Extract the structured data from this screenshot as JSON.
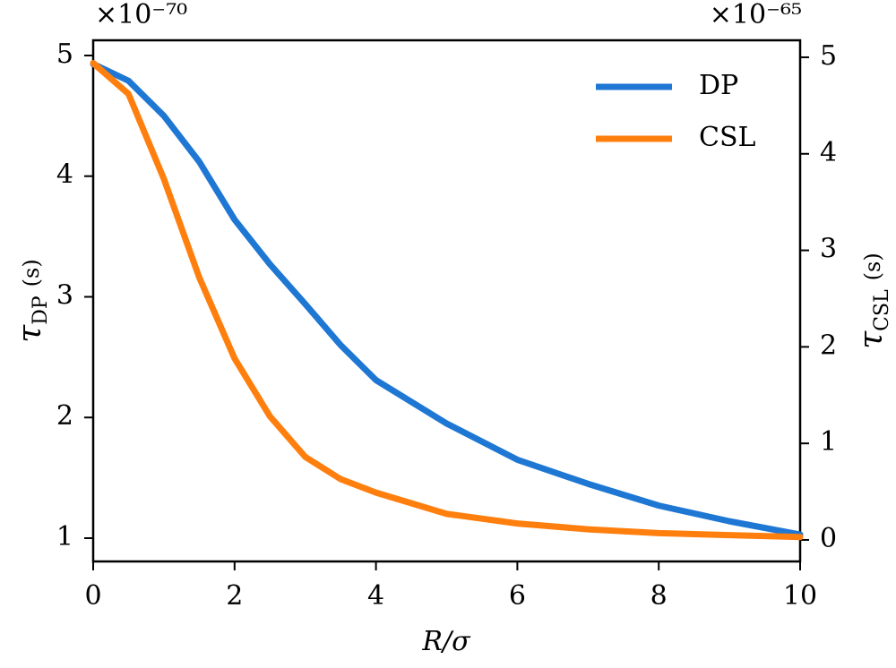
{
  "chart_data": {
    "type": "line",
    "xlabel": "R/σ",
    "ylabel": {
      "symbol": "τ",
      "subscript": "DP",
      "unit": "(s)"
    },
    "y2label": {
      "symbol": "τ",
      "subscript": "CSL",
      "unit": "(s)"
    },
    "y_offset_label": "×10⁻⁷⁰",
    "y2_offset_label": "×10⁻⁶⁵",
    "x": [
      0,
      0.5,
      1,
      1.5,
      2,
      2.5,
      3,
      3.5,
      4,
      5,
      6,
      7,
      8,
      9,
      10
    ],
    "series": [
      {
        "name": "DP",
        "color": "#1f77d4",
        "axis": "y",
        "values": [
          4.93,
          4.79,
          4.5,
          4.12,
          3.64,
          3.27,
          2.94,
          2.6,
          2.31,
          1.95,
          1.65,
          1.45,
          1.27,
          1.14,
          1.03
        ]
      },
      {
        "name": "CSL",
        "color": "#ff7f0e",
        "axis": "y2",
        "values": [
          4.94,
          4.62,
          3.74,
          2.72,
          1.88,
          1.28,
          0.86,
          0.63,
          0.49,
          0.27,
          0.17,
          0.11,
          0.07,
          0.05,
          0.03
        ]
      }
    ],
    "xlim": [
      0,
      10
    ],
    "xticks": [
      0,
      2,
      4,
      6,
      8,
      10
    ],
    "ylim": [
      0.807,
      5.126
    ],
    "yticks": [
      1,
      2,
      3,
      4,
      5
    ],
    "y2lim": [
      -0.223,
      5.176
    ],
    "y2ticks": [
      0,
      1,
      2,
      3,
      4,
      5
    ],
    "legend": "upper right",
    "grid": false
  }
}
